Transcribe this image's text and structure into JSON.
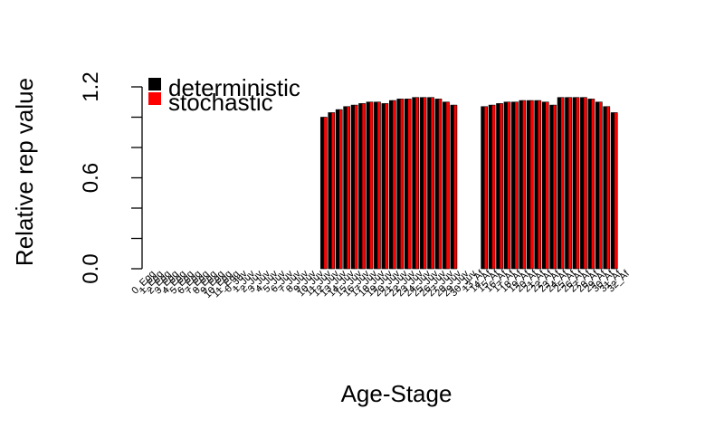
{
  "chart_data": {
    "type": "bar",
    "xlabel": "Age-Stage",
    "ylabel": "Relative rep value",
    "ylim": [
      0,
      1.2
    ],
    "yticks": [
      "0.0",
      "0.6",
      "1.2"
    ],
    "legend": {
      "position": "top-left",
      "entries": [
        {
          "label": "deterministic",
          "color": "#000000"
        },
        {
          "label": "stochastic",
          "color": "#ff0000"
        }
      ]
    },
    "categories": [
      "0_Egg",
      "1_Egg",
      "2_Egg",
      "3_Egg",
      "4_Egg",
      "5_Egg",
      "6_Egg",
      "7_Egg",
      "8_Egg",
      "9_Egg",
      "10_Egg",
      "11_Egg",
      "0_Juv",
      "1_Juv",
      "2_Juv",
      "3_Juv",
      "4_Juv",
      "5_Juv",
      "6_Juv",
      "7_Juv",
      "8_Juv",
      "9_Juv",
      "10_Juv",
      "11_Juv",
      "12_Juv",
      "13_Juv",
      "14_Juv",
      "15_Juv",
      "16_Juv",
      "17_Juv",
      "18_Juv",
      "19_Juv",
      "20_Juv",
      "21_Juv",
      "22_Juv",
      "23_Juv",
      "24_Juv",
      "25_Juv",
      "26_Juv",
      "27_Juv",
      "28_Juv",
      "29_Juv",
      "30_Juv",
      "13_Af",
      "14_Af",
      "15_Af",
      "16_Af",
      "17_Af",
      "18_Af",
      "19_Af",
      "20_Af",
      "21_Af",
      "22_Af",
      "23_Af",
      "24_Af",
      "25_Af",
      "26_Af",
      "27_Af",
      "28_Af",
      "29_Af",
      "30_Af",
      "31_Af",
      "32_Af"
    ],
    "series": [
      {
        "name": "deterministic",
        "color": "#000000",
        "values": [
          0,
          0,
          0,
          0,
          0,
          0,
          0,
          0,
          0,
          0,
          0,
          0,
          0,
          0,
          0,
          0,
          0,
          0,
          0,
          0,
          0,
          0,
          1.0,
          1.03,
          1.05,
          1.07,
          1.08,
          1.09,
          1.1,
          1.1,
          1.09,
          1.11,
          1.12,
          1.12,
          1.13,
          1.13,
          1.13,
          1.12,
          1.1,
          1.08,
          0,
          0,
          0,
          1.07,
          1.08,
          1.09,
          1.1,
          1.1,
          1.11,
          1.11,
          1.11,
          1.1,
          1.08,
          1.13,
          1.13,
          1.13,
          1.13,
          1.12,
          1.1,
          1.07,
          1.03,
          0,
          0
        ]
      },
      {
        "name": "stochastic",
        "color": "#ff0000",
        "values": [
          0,
          0,
          0,
          0,
          0,
          0,
          0,
          0,
          0,
          0,
          0,
          0,
          0,
          0,
          0,
          0,
          0,
          0,
          0,
          0,
          0,
          0,
          1.0,
          1.03,
          1.05,
          1.07,
          1.08,
          1.09,
          1.1,
          1.1,
          1.09,
          1.11,
          1.12,
          1.12,
          1.13,
          1.13,
          1.13,
          1.12,
          1.1,
          1.08,
          0,
          0,
          0,
          1.07,
          1.08,
          1.09,
          1.1,
          1.1,
          1.11,
          1.11,
          1.11,
          1.1,
          1.08,
          1.13,
          1.13,
          1.13,
          1.13,
          1.12,
          1.1,
          1.07,
          1.03,
          0,
          0
        ]
      }
    ]
  }
}
